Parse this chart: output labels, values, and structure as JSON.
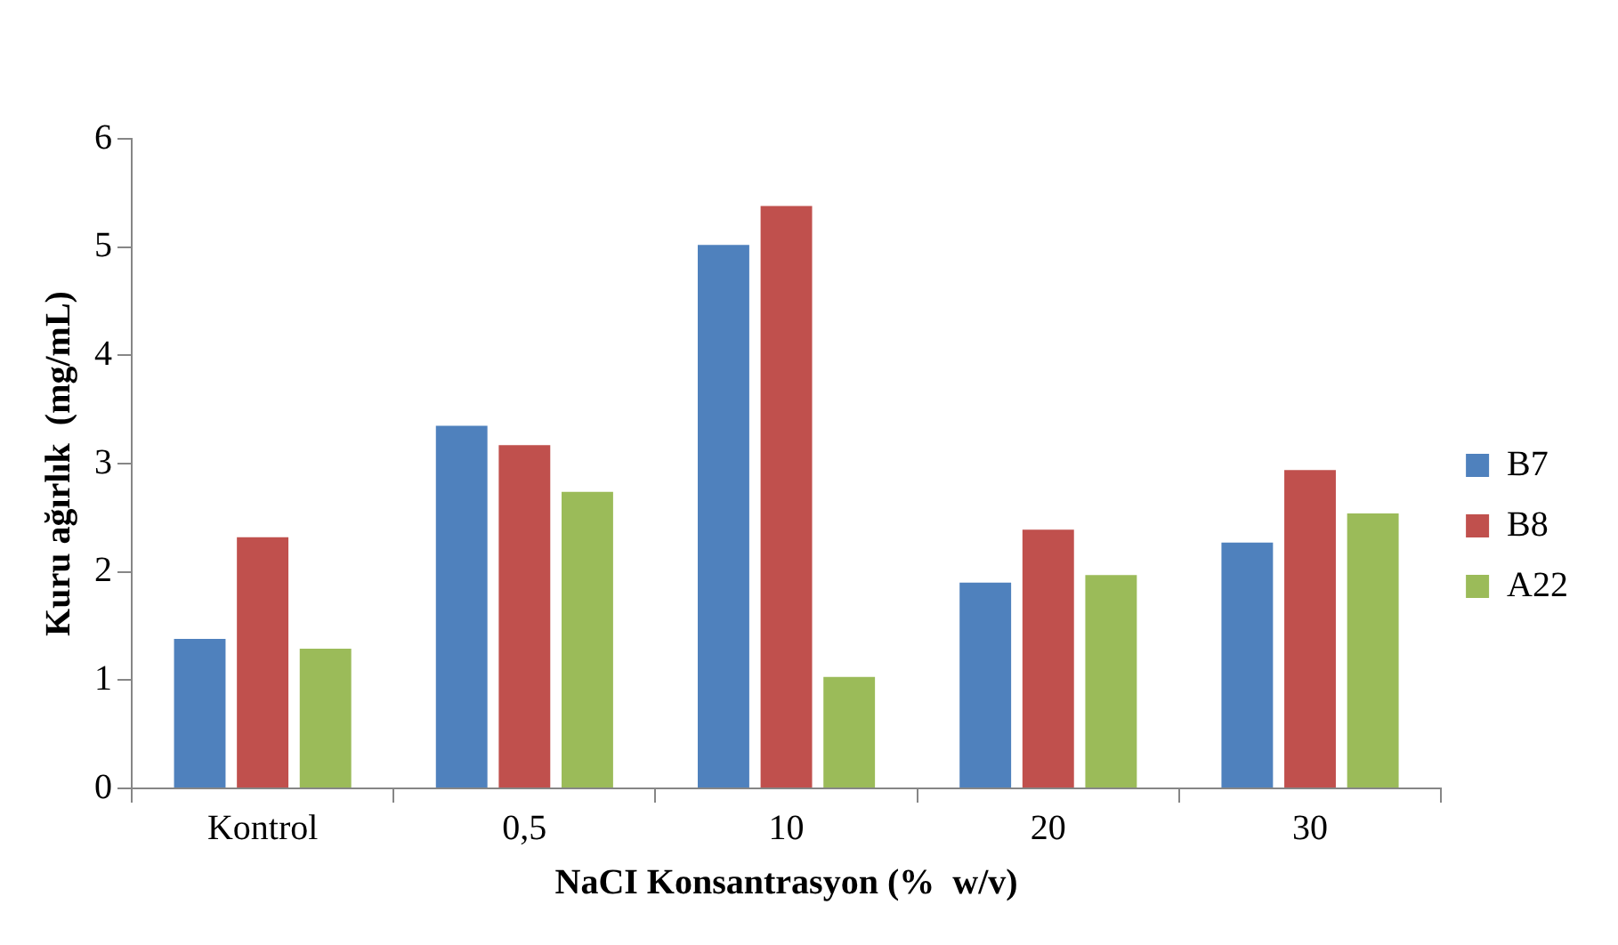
{
  "chart_data": {
    "type": "bar",
    "xlabel": "NaCI Konsantrasyon (%  w/v)",
    "ylabel": "Kuru ağırlık  (mg/mL)",
    "categories": [
      "Kontrol",
      "0,5",
      "10",
      "20",
      "30"
    ],
    "series": [
      {
        "name": "B7",
        "color": "#4f81bd",
        "values": [
          1.38,
          3.35,
          5.02,
          1.9,
          2.27
        ]
      },
      {
        "name": "B8",
        "color": "#c0504d",
        "values": [
          2.32,
          3.17,
          5.38,
          2.39,
          2.94
        ]
      },
      {
        "name": "A22",
        "color": "#9bbb59",
        "values": [
          1.29,
          2.74,
          1.03,
          1.97,
          2.54
        ]
      }
    ],
    "ylim": [
      0,
      6
    ],
    "yticks": [
      0,
      1,
      2,
      3,
      4,
      5,
      6
    ],
    "legend": "right"
  }
}
